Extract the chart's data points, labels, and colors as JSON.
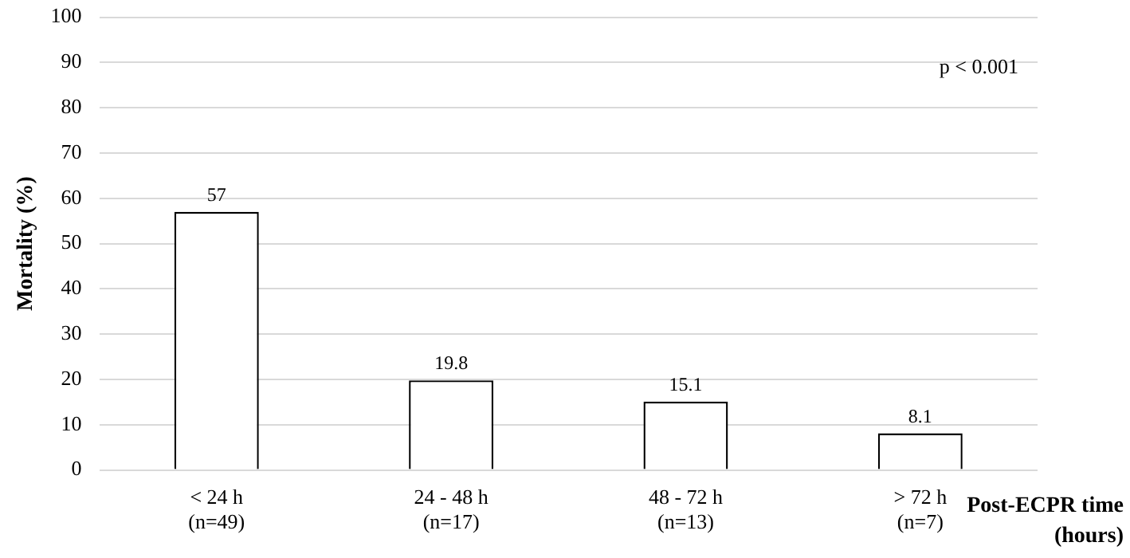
{
  "chart_data": {
    "type": "bar",
    "categories": [
      "< 24 h\n(n=49)",
      "24 - 48 h\n(n=17)",
      "48 - 72 h\n(n=13)",
      "> 72 h\n(n=7)"
    ],
    "values": [
      57,
      19.8,
      15.1,
      8.1
    ],
    "color": "#ffffff",
    "ylabel": "Mortality (%)",
    "xlabel": "Post-ECPR time\n(hours)",
    "annotations": [
      "p < 0.001"
    ],
    "ylim": [
      0,
      100
    ],
    "yticks": [
      0,
      10,
      20,
      30,
      40,
      50,
      60,
      70,
      80,
      90,
      100
    ],
    "grid": "y",
    "data_labels": true,
    "legend": false
  }
}
